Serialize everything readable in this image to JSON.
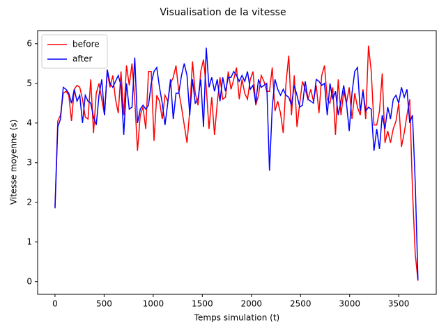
{
  "chart_data": {
    "type": "line",
    "title": "Visualisation de la vitesse",
    "xlabel": "Temps simulation (t)",
    "ylabel": "Vitesse moyenne (s)",
    "x": [
      0,
      28,
      56,
      84,
      112,
      140,
      168,
      196,
      224,
      252,
      280,
      308,
      336,
      364,
      392,
      420,
      448,
      476,
      504,
      532,
      560,
      588,
      616,
      644,
      672,
      700,
      728,
      756,
      784,
      812,
      840,
      868,
      896,
      924,
      952,
      980,
      1008,
      1036,
      1064,
      1092,
      1120,
      1148,
      1176,
      1204,
      1232,
      1260,
      1288,
      1316,
      1344,
      1372,
      1400,
      1428,
      1456,
      1484,
      1512,
      1540,
      1568,
      1596,
      1624,
      1652,
      1680,
      1708,
      1736,
      1764,
      1792,
      1820,
      1848,
      1876,
      1904,
      1932,
      1960,
      1988,
      2016,
      2044,
      2072,
      2100,
      2128,
      2156,
      2184,
      2212,
      2240,
      2268,
      2296,
      2324,
      2352,
      2380,
      2408,
      2436,
      2464,
      2492,
      2520,
      2548,
      2576,
      2604,
      2632,
      2660,
      2688,
      2716,
      2744,
      2772,
      2800,
      2828,
      2856,
      2884,
      2912,
      2940,
      2968,
      2996,
      3024,
      3052,
      3080,
      3108,
      3136,
      3164,
      3192,
      3220,
      3248,
      3276,
      3304,
      3332,
      3360,
      3388,
      3416,
      3444,
      3472,
      3500,
      3528,
      3556,
      3584,
      3612,
      3640,
      3668,
      3696
    ],
    "series": [
      {
        "name": "before",
        "color": "#ff0000",
        "values": [
          1.9,
          4.05,
          4.2,
          4.75,
          4.8,
          4.7,
          4.05,
          4.85,
          4.95,
          4.9,
          4.6,
          4.15,
          4.1,
          5.1,
          3.75,
          4.75,
          5.0,
          4.6,
          4.2,
          5.3,
          4.9,
          5.2,
          4.6,
          4.25,
          5.3,
          4.2,
          5.45,
          4.95,
          5.5,
          4.6,
          3.3,
          4.2,
          4.4,
          3.85,
          5.3,
          5.3,
          3.55,
          4.7,
          4.55,
          4.1,
          4.7,
          4.55,
          5.0,
          5.15,
          5.45,
          4.8,
          4.4,
          3.95,
          3.5,
          4.3,
          5.55,
          4.75,
          4.45,
          5.3,
          5.6,
          4.9,
          3.85,
          4.65,
          3.7,
          4.5,
          5.15,
          4.6,
          4.65,
          5.3,
          4.85,
          5.1,
          5.4,
          4.6,
          5.1,
          4.75,
          4.6,
          5.1,
          5.3,
          4.45,
          4.7,
          5.2,
          5.05,
          4.8,
          4.8,
          5.4,
          4.3,
          4.55,
          4.25,
          3.75,
          5.0,
          5.7,
          4.2,
          5.2,
          3.9,
          4.5,
          5.05,
          4.85,
          4.6,
          4.85,
          4.55,
          4.95,
          4.25,
          5.2,
          5.45,
          4.6,
          4.5,
          4.9,
          3.7,
          5.1,
          4.2,
          4.8,
          4.5,
          4.9,
          4.1,
          4.75,
          4.4,
          4.2,
          4.85,
          4.1,
          5.95,
          5.3,
          3.95,
          3.95,
          4.3,
          5.25,
          3.5,
          3.8,
          3.5,
          3.85,
          4.05,
          4.5,
          3.4,
          3.75,
          4.2,
          4.6,
          2.3,
          0.7,
          0.02
        ]
      },
      {
        "name": "after",
        "color": "#0000ff",
        "values": [
          1.85,
          3.9,
          4.1,
          4.9,
          4.85,
          4.75,
          4.5,
          4.85,
          4.55,
          4.7,
          4.0,
          4.7,
          4.55,
          4.5,
          4.15,
          3.95,
          4.7,
          5.1,
          4.2,
          5.35,
          5.0,
          4.9,
          5.05,
          5.2,
          4.95,
          3.7,
          5.0,
          4.35,
          4.4,
          5.65,
          4.0,
          4.35,
          4.45,
          4.35,
          4.45,
          5.0,
          5.3,
          5.4,
          4.9,
          4.5,
          3.95,
          4.5,
          5.1,
          4.1,
          4.75,
          4.75,
          5.2,
          5.5,
          5.2,
          4.2,
          5.1,
          4.5,
          4.6,
          5.1,
          3.9,
          5.9,
          4.9,
          5.15,
          4.8,
          5.1,
          4.55,
          5.15,
          4.8,
          5.15,
          5.15,
          5.3,
          5.2,
          5.05,
          5.2,
          5.05,
          5.3,
          4.85,
          4.95,
          4.5,
          5.1,
          4.9,
          4.95,
          5.0,
          2.8,
          4.4,
          5.1,
          4.85,
          4.7,
          4.85,
          4.7,
          4.65,
          4.45,
          4.95,
          4.7,
          4.4,
          4.45,
          5.05,
          4.6,
          4.55,
          4.5,
          5.1,
          5.05,
          4.95,
          5.0,
          4.2,
          5.0,
          4.6,
          4.8,
          4.2,
          4.55,
          4.95,
          4.5,
          3.8,
          4.75,
          5.3,
          5.4,
          4.3,
          4.8,
          4.3,
          4.4,
          4.35,
          3.3,
          3.85,
          3.35,
          4.2,
          3.85,
          4.4,
          4.1,
          4.6,
          4.7,
          4.5,
          4.9,
          4.65,
          4.85,
          4.0,
          4.2,
          2.5,
          0.05
        ]
      }
    ],
    "xlim": [
      -177,
      3882
    ],
    "ylim": [
      -0.32,
      6.33
    ],
    "xticks": [
      0,
      500,
      1000,
      1500,
      2000,
      2500,
      3000,
      3500
    ],
    "yticks": [
      0,
      1,
      2,
      3,
      4,
      5,
      6
    ],
    "legend": "upper left"
  }
}
